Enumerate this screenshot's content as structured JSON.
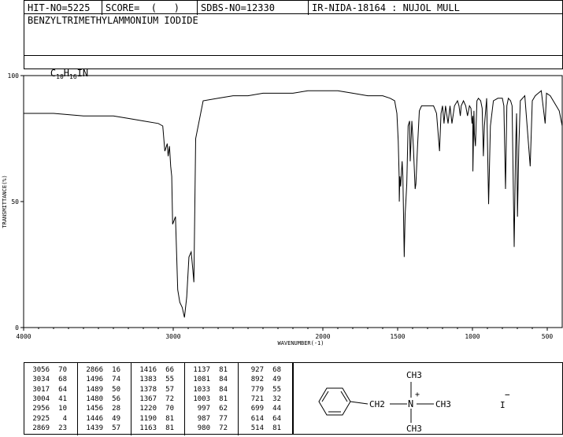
{
  "header": {
    "hit_no": "HIT-NO=5225",
    "score": "SCORE=  (   )",
    "sdbs_no": "SDBS-NO=12330",
    "ir_nida": "IR-NIDA-18164 : NUJOL MULL"
  },
  "compound": {
    "name": "BENZYLTRIMETHYLAMMONIUM IODIDE",
    "formula_c": "C",
    "formula_c_sub": "10",
    "formula_h": "H",
    "formula_h_sub": "16",
    "formula_rest": "IN"
  },
  "chart_data": {
    "type": "line",
    "xlabel": "WAVENUMBER(-1)",
    "ylabel": "TRANSMITTANCE(%)",
    "xlim": [
      4000,
      400
    ],
    "ylim": [
      0,
      100
    ],
    "x_ticks": [
      4000,
      3000,
      2000,
      1500,
      1000,
      500
    ],
    "x_tick_labels": [
      "4000",
      "3000",
      "2000",
      "1500",
      "1000",
      "500"
    ],
    "y_ticks": [
      0,
      50,
      100
    ],
    "y_tick_labels": [
      "0",
      "50",
      "100"
    ],
    "series": [
      {
        "x": [
          4000,
          3800,
          3600,
          3400,
          3300,
          3200,
          3100,
          3070,
          3056,
          3040,
          3034,
          3025,
          3017,
          3010,
          3004,
          2985,
          2970,
          2956,
          2940,
          2925,
          2910,
          2895,
          2880,
          2869,
          2862,
          2850,
          2800,
          2700,
          2600,
          2500,
          2400,
          2300,
          2200,
          2100,
          2000,
          1900,
          1800,
          1700,
          1600,
          1550,
          1520,
          1505,
          1496,
          1490,
          1489,
          1485,
          1480,
          1470,
          1465,
          1456,
          1450,
          1446,
          1439,
          1430,
          1420,
          1416,
          1405,
          1395,
          1383,
          1378,
          1367,
          1355,
          1340,
          1300,
          1260,
          1240,
          1220,
          1210,
          1200,
          1190,
          1180,
          1163,
          1150,
          1137,
          1120,
          1100,
          1090,
          1081,
          1075,
          1060,
          1045,
          1033,
          1020,
          1010,
          1003,
          998,
          997,
          990,
          987,
          980,
          970,
          960,
          945,
          935,
          930,
          927,
          920,
          905,
          892,
          880,
          860,
          830,
          800,
          790,
          779,
          770,
          760,
          745,
          735,
          721,
          712,
          705,
          699,
          690,
          680,
          650,
          614,
          600,
          580,
          560,
          540,
          514,
          505,
          480,
          460,
          440,
          420,
          400
        ],
        "y": [
          85,
          85,
          84,
          84,
          83,
          82,
          81,
          80,
          70,
          73,
          68,
          72,
          64,
          60,
          41,
          44,
          15,
          10,
          8,
          4,
          12,
          28,
          30,
          23,
          18,
          75,
          90,
          91,
          92,
          92,
          93,
          93,
          93,
          94,
          94,
          94,
          93,
          92,
          92,
          91,
          90,
          85,
          74,
          60,
          50,
          60,
          56,
          66,
          60,
          28,
          45,
          49,
          57,
          80,
          82,
          66,
          82,
          72,
          55,
          57,
          72,
          86,
          88,
          88,
          88,
          85,
          70,
          85,
          88,
          81,
          88,
          81,
          88,
          81,
          88,
          90,
          88,
          84,
          88,
          90,
          88,
          84,
          88,
          87,
          81,
          84,
          62,
          86,
          77,
          72,
          90,
          91,
          90,
          87,
          76,
          68,
          80,
          91,
          49,
          80,
          90,
          91,
          91,
          88,
          55,
          88,
          91,
          90,
          88,
          32,
          70,
          85,
          44,
          72,
          90,
          92,
          64,
          90,
          92,
          93,
          94,
          81,
          93,
          92,
          90,
          88,
          86,
          80
        ]
      }
    ],
    "peak_table": [
      [
        [
          "3056",
          "70"
        ],
        [
          "3034",
          "68"
        ],
        [
          "3017",
          "64"
        ],
        [
          "3004",
          "41"
        ],
        [
          "2956",
          "10"
        ],
        [
          "2925",
          "4"
        ],
        [
          "2869",
          "23"
        ]
      ],
      [
        [
          "2866",
          "16"
        ],
        [
          "1496",
          "74"
        ],
        [
          "1489",
          "50"
        ],
        [
          "1480",
          "56"
        ],
        [
          "1456",
          "28"
        ],
        [
          "1446",
          "49"
        ],
        [
          "1439",
          "57"
        ]
      ],
      [
        [
          "1416",
          "66"
        ],
        [
          "1383",
          "55"
        ],
        [
          "1378",
          "57"
        ],
        [
          "1367",
          "72"
        ],
        [
          "1220",
          "70"
        ],
        [
          "1190",
          "81"
        ],
        [
          "1163",
          "81"
        ]
      ],
      [
        [
          "1137",
          "81"
        ],
        [
          "1081",
          "84"
        ],
        [
          "1033",
          "84"
        ],
        [
          "1003",
          "81"
        ],
        [
          "997",
          "62"
        ],
        [
          "987",
          "77"
        ],
        [
          "980",
          "72"
        ]
      ],
      [
        [
          "927",
          "68"
        ],
        [
          "892",
          "49"
        ],
        [
          "779",
          "55"
        ],
        [
          "721",
          "32"
        ],
        [
          "699",
          "44"
        ],
        [
          "614",
          "64"
        ],
        [
          "514",
          "81"
        ]
      ]
    ]
  },
  "structure": {
    "ch3_top": "CH3",
    "ch2": "CH2",
    "n_label": "N",
    "plus": "+",
    "ch3_right": "CH3",
    "ch3_bottom": "CH3",
    "iodide": "I",
    "minus": "−"
  }
}
